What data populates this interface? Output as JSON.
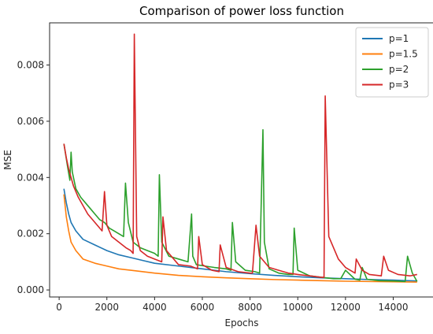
{
  "chart_data": {
    "type": "line",
    "title": "Comparison of power loss function",
    "xlabel": "Epochs",
    "ylabel": "MSE",
    "xlim": [
      -400,
      15700
    ],
    "ylim": [
      -0.00025,
      0.0095
    ],
    "xticks": [
      0,
      2000,
      4000,
      6000,
      8000,
      10000,
      12000,
      14000
    ],
    "xtick_labels": [
      "0",
      "2000",
      "4000",
      "6000",
      "8000",
      "10000",
      "12000",
      "14000"
    ],
    "yticks": [
      0,
      0.002,
      0.004,
      0.006,
      0.008
    ],
    "ytick_labels": [
      "0.000",
      "0.002",
      "0.004",
      "0.006",
      "0.008"
    ],
    "grid": false,
    "legend_position": "top-right",
    "series": [
      {
        "name": "p=1",
        "color": "#1f77b4",
        "x": [
          200,
          300,
          400,
          500,
          700,
          1000,
          1500,
          2000,
          2500,
          3000,
          3500,
          4000,
          5000,
          6000,
          7000,
          8000,
          9000,
          10000,
          11000,
          12000,
          13000,
          14000,
          15000
        ],
        "y": [
          0.0036,
          0.0031,
          0.0027,
          0.0024,
          0.0021,
          0.0018,
          0.0016,
          0.0014,
          0.00125,
          0.00115,
          0.00105,
          0.00095,
          0.00085,
          0.00075,
          0.00065,
          0.00058,
          0.00052,
          0.00047,
          0.00043,
          0.0004,
          0.00037,
          0.00035,
          0.00032
        ]
      },
      {
        "name": "p=1.5",
        "color": "#ff7f0e",
        "x": [
          200,
          300,
          400,
          500,
          700,
          1000,
          1500,
          2000,
          2500,
          3000,
          4000,
          5000,
          6000,
          7000,
          8000,
          9000,
          10000,
          11000,
          12000,
          13000,
          14000,
          15000
        ],
        "y": [
          0.0034,
          0.0026,
          0.0021,
          0.0017,
          0.0014,
          0.0011,
          0.00095,
          0.00085,
          0.00075,
          0.0007,
          0.0006,
          0.00052,
          0.00047,
          0.00043,
          0.0004,
          0.00037,
          0.00035,
          0.00033,
          0.00031,
          0.0003,
          0.00029,
          0.00028
        ]
      },
      {
        "name": "p=2",
        "color": "#2ca02c",
        "x": [
          200,
          350,
          450,
          500,
          550,
          700,
          900,
          1100,
          1300,
          1500,
          1700,
          1900,
          2100,
          2300,
          2500,
          2700,
          2780,
          2900,
          3100,
          3400,
          3700,
          4000,
          4150,
          4200,
          4300,
          4600,
          5000,
          5400,
          5550,
          5600,
          5750,
          6100,
          6500,
          7000,
          7200,
          7260,
          7400,
          7800,
          8200,
          8400,
          8540,
          8600,
          8800,
          9200,
          9600,
          9800,
          9850,
          10000,
          10500,
          11000,
          11500,
          11800,
          12000,
          12400,
          12600,
          12700,
          12900,
          13400,
          14000,
          14500,
          14600,
          14800,
          15000
        ],
        "y": [
          0.0052,
          0.0044,
          0.0039,
          0.0049,
          0.0042,
          0.0036,
          0.0033,
          0.0031,
          0.0029,
          0.0027,
          0.0025,
          0.0024,
          0.0022,
          0.0021,
          0.002,
          0.0019,
          0.0038,
          0.0024,
          0.0017,
          0.0015,
          0.0014,
          0.0013,
          0.0012,
          0.0041,
          0.0017,
          0.0012,
          0.0011,
          0.001,
          0.0027,
          0.0012,
          0.0009,
          0.00085,
          0.0008,
          0.00075,
          0.0007,
          0.0024,
          0.001,
          0.0007,
          0.00065,
          0.0006,
          0.0057,
          0.0017,
          0.00075,
          0.0006,
          0.00055,
          0.00055,
          0.0022,
          0.0007,
          0.0005,
          0.00045,
          0.0004,
          0.0004,
          0.0007,
          0.00038,
          0.00035,
          0.0008,
          0.00038,
          0.00033,
          0.00032,
          0.0003,
          0.0012,
          0.0006,
          0.0003
        ]
      },
      {
        "name": "p=3",
        "color": "#d62728",
        "x": [
          200,
          300,
          400,
          500,
          600,
          800,
          1000,
          1200,
          1400,
          1600,
          1800,
          1900,
          2000,
          2200,
          2500,
          2800,
          3000,
          3100,
          3150,
          3250,
          3400,
          3700,
          4000,
          4300,
          4350,
          4500,
          5000,
          5500,
          5800,
          5850,
          6000,
          6400,
          6700,
          6750,
          7000,
          7500,
          8000,
          8100,
          8250,
          8400,
          8800,
          9200,
          9600,
          10000,
          10500,
          11000,
          11100,
          11150,
          11300,
          11700,
          12000,
          12400,
          12450,
          12700,
          13000,
          13500,
          13600,
          13800,
          14200,
          14700,
          15000
        ],
        "y": [
          0.0052,
          0.0047,
          0.0043,
          0.004,
          0.0037,
          0.0033,
          0.003,
          0.0027,
          0.0025,
          0.0023,
          0.0021,
          0.0035,
          0.0023,
          0.0019,
          0.0017,
          0.0015,
          0.0014,
          0.0013,
          0.0091,
          0.0019,
          0.0014,
          0.0012,
          0.0011,
          0.001,
          0.0026,
          0.0014,
          0.0009,
          0.00085,
          0.00075,
          0.0019,
          0.0009,
          0.0007,
          0.00065,
          0.0016,
          0.0008,
          0.00065,
          0.0006,
          0.0006,
          0.0023,
          0.0012,
          0.0008,
          0.0007,
          0.0006,
          0.00055,
          0.0005,
          0.00045,
          0.00045,
          0.0069,
          0.0019,
          0.0011,
          0.0008,
          0.0006,
          0.0011,
          0.0007,
          0.00055,
          0.0005,
          0.0012,
          0.0007,
          0.00055,
          0.0005,
          0.00055
        ]
      }
    ]
  }
}
